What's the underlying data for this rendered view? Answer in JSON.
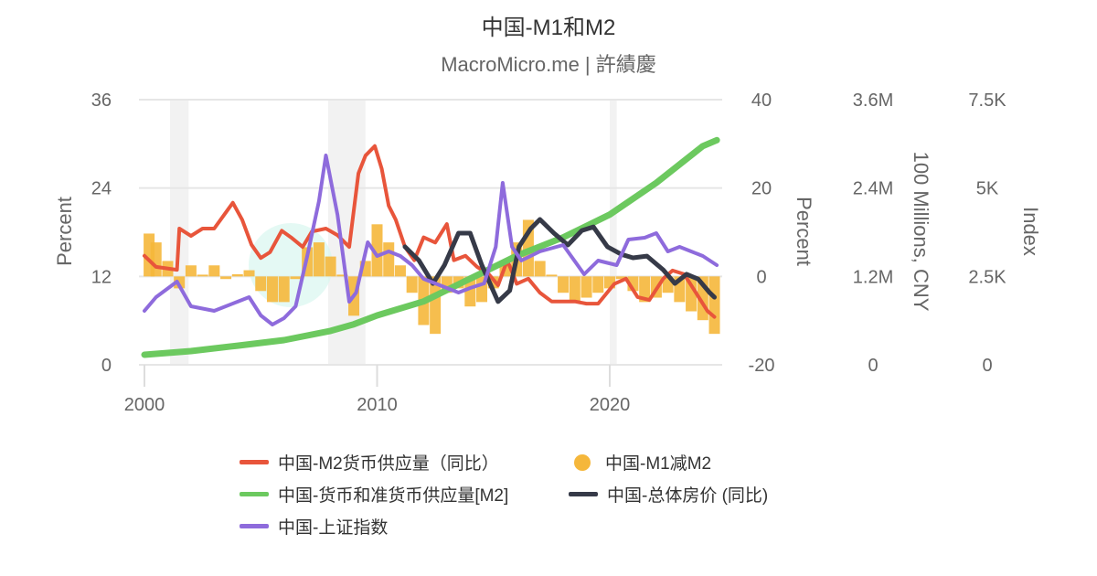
{
  "chart_data": {
    "type": "line",
    "title": "中国-M1和M2",
    "subtitle": "MacroMicro.me | 許績慶",
    "xlim": [
      2000,
      2024.9
    ],
    "x_ticks": [
      "2000",
      "2010",
      "2020"
    ],
    "grid": true,
    "legend_placement": "bottom",
    "axes": {
      "left": {
        "label": "Percent",
        "range": [
          0,
          36
        ],
        "ticks": [
          "0",
          "12",
          "24",
          "36"
        ]
      },
      "right1": {
        "label": "Percent",
        "range": [
          -20,
          40
        ],
        "ticks": [
          "-20",
          "0",
          "20",
          "40"
        ]
      },
      "right2": {
        "label": "100 Millions, CNY",
        "range": [
          0,
          3600000
        ],
        "ticks": [
          "0",
          "1.2M",
          "2.4M",
          "3.6M"
        ]
      },
      "right3": {
        "label": "Index",
        "range": [
          0,
          7500
        ],
        "ticks": [
          "0",
          "2.5K",
          "5K",
          "7.5K"
        ]
      }
    },
    "shaded_periods": [
      [
        2001.1,
        2001.9
      ],
      [
        2007.9,
        2009.5
      ],
      [
        2020.0,
        2020.3
      ]
    ],
    "series": [
      {
        "name": "中国-M2货币供应量（同比）",
        "type": "line",
        "axis": "left",
        "color": "#e8553b",
        "x": [
          2000.0,
          2000.5,
          2001.4,
          2001.5,
          2002,
          2002.5,
          2003,
          2003.5,
          2003.8,
          2004.2,
          2004.6,
          2005,
          2005.4,
          2005.9,
          2006.3,
          2006.8,
          2007.2,
          2007.8,
          2008.3,
          2008.8,
          2009.2,
          2009.5,
          2009.9,
          2010.2,
          2010.5,
          2010.8,
          2011.2,
          2011.6,
          2012,
          2012.5,
          2013,
          2013.3,
          2013.8,
          2014.3,
          2014.8,
          2015.2,
          2015.6,
          2016,
          2016.5,
          2017,
          2017.5,
          2018,
          2018.5,
          2019,
          2019.5,
          2020.2,
          2020.7,
          2021.2,
          2021.7,
          2022.3,
          2022.7,
          2023.2,
          2023.7,
          2024.2,
          2024.5
        ],
        "values": [
          14.8,
          13.3,
          12.9,
          18.5,
          17.5,
          18.5,
          18.5,
          20.7,
          22,
          19.7,
          16.3,
          14.5,
          15.3,
          18.2,
          17.3,
          16,
          18.1,
          18.5,
          17.6,
          16,
          26,
          28.4,
          29.7,
          26.6,
          21.6,
          19.7,
          16,
          14.2,
          17.3,
          16.6,
          19.1,
          14.2,
          14.8,
          13.3,
          12.3,
          10.8,
          14.2,
          11,
          11.7,
          9.8,
          8.6,
          8.6,
          8.6,
          8.3,
          8.3,
          11,
          11.7,
          9.2,
          8.8,
          11.7,
          12.8,
          12.3,
          9.8,
          7.3,
          6.5
        ]
      },
      {
        "name": "中国-M1减M2",
        "type": "bar",
        "axis": "right1",
        "color": "#f5b73b",
        "x": [
          2000.2,
          2000.5,
          2001,
          2001.5,
          2002,
          2002.5,
          2003,
          2003.5,
          2004,
          2004.5,
          2005,
          2005.5,
          2006,
          2006.5,
          2007,
          2007.5,
          2008,
          2008.5,
          2009,
          2009.5,
          2010,
          2010.5,
          2011,
          2011.5,
          2012,
          2012.5,
          2013,
          2013.5,
          2014,
          2014.5,
          2015,
          2015.5,
          2016,
          2016.5,
          2017,
          2017.5,
          2018,
          2018.5,
          2019,
          2019.5,
          2020,
          2020.5,
          2021,
          2021.5,
          2022,
          2022.5,
          2023,
          2023.5,
          2024,
          2024.5
        ],
        "values": [
          9.7,
          7.7,
          3.5,
          -2.7,
          2.5,
          0.4,
          2.5,
          -0.6,
          0.5,
          1.4,
          -3.3,
          -5.8,
          -5.8,
          -0.6,
          6.6,
          7.7,
          4.5,
          0.4,
          -8.9,
          3.5,
          11.8,
          7.7,
          2.5,
          -3.7,
          -11,
          -13,
          -3.7,
          -2.7,
          -6.8,
          -5.8,
          -2.7,
          3.5,
          7.7,
          12.8,
          3.5,
          0.4,
          -3.7,
          -5.8,
          -4.8,
          -3.7,
          -2.7,
          -0.6,
          -3.3,
          -5.8,
          -4.8,
          -3.7,
          -5.8,
          -7.9,
          -9.9,
          -13
        ]
      },
      {
        "name": "中国-货币和准货币供应量[M2]",
        "type": "line",
        "axis": "right2",
        "color": "#6cc95f",
        "x": [
          2000,
          2002,
          2004,
          2006,
          2008,
          2009,
          2010,
          2012,
          2014,
          2016,
          2018,
          2020,
          2022,
          2024,
          2024.6
        ],
        "values": [
          137000,
          186000,
          260000,
          335000,
          460000,
          550000,
          670000,
          860000,
          1170000,
          1480000,
          1730000,
          2040000,
          2470000,
          2970000,
          3050000
        ]
      },
      {
        "name": "中国-总体房价 (同比)",
        "type": "line",
        "axis": "right1",
        "color": "#363a48",
        "x": [
          2011.2,
          2011.8,
          2012.4,
          2012.9,
          2013.5,
          2014,
          2014.5,
          2015.2,
          2015.7,
          2016.1,
          2016.6,
          2017,
          2017.6,
          2018.2,
          2018.8,
          2019.3,
          2019.9,
          2020.5,
          2021,
          2021.6,
          2022.3,
          2022.8,
          2023.3,
          2023.8,
          2024.3,
          2024.5
        ],
        "values": [
          6.7,
          3.6,
          -1.6,
          2.6,
          9.8,
          9.8,
          2.6,
          -5.7,
          -3.2,
          6.7,
          10.8,
          12.9,
          9.8,
          7.1,
          10.4,
          11.2,
          6.7,
          5,
          4.2,
          4.6,
          1.5,
          -1.6,
          0.5,
          -0.6,
          -3.7,
          -4.7
        ]
      },
      {
        "name": "中国-上证指数",
        "type": "line",
        "axis": "right3",
        "color": "#8e6bdc",
        "x": [
          2000,
          2000.5,
          2001.4,
          2002,
          2003,
          2004,
          2004.5,
          2005,
          2005.5,
          2006,
          2006.5,
          2007,
          2007.5,
          2007.8,
          2008.3,
          2008.8,
          2009.1,
          2009.6,
          2010,
          2010.5,
          2011,
          2011.5,
          2012,
          2012.5,
          2013,
          2013.5,
          2014,
          2014.6,
          2015.1,
          2015.4,
          2015.8,
          2016.2,
          2017,
          2018,
          2018.9,
          2019.5,
          2020.3,
          2020.8,
          2021.5,
          2022,
          2022.5,
          2023,
          2023.5,
          2024,
          2024.6
        ],
        "values": [
          1526,
          1914,
          2353,
          1655,
          1526,
          1784,
          1914,
          1397,
          1138,
          1319,
          1655,
          3077,
          4629,
          5922,
          4241,
          1784,
          2043,
          3465,
          3077,
          3207,
          3077,
          2819,
          2431,
          2302,
          2172,
          2043,
          2172,
          2302,
          3336,
          5147,
          3336,
          2948,
          3207,
          3388,
          2560,
          2948,
          2819,
          3543,
          3595,
          3724,
          3207,
          3336,
          3207,
          3077,
          2819
        ]
      }
    ]
  }
}
